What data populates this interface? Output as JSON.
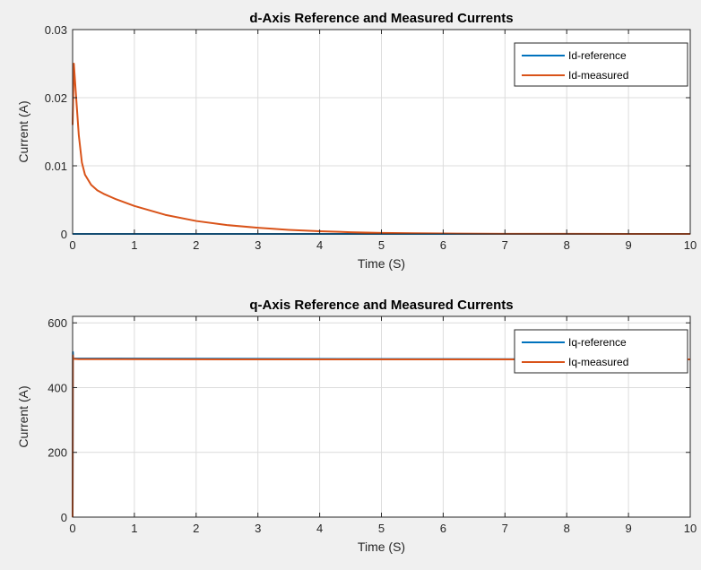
{
  "figure": {
    "background": "#f0f0f0",
    "axes_background": "#ffffff"
  },
  "chart_data": [
    {
      "type": "line",
      "title": "d-Axis Reference and Measured Currents",
      "xlabel": "Time (S)",
      "ylabel": "Current (A)",
      "xlim": [
        0,
        10
      ],
      "ylim": [
        0,
        0.03
      ],
      "xticks": [
        "0",
        "1",
        "2",
        "3",
        "4",
        "5",
        "6",
        "7",
        "8",
        "9",
        "10"
      ],
      "yticks": [
        "0",
        "0.01",
        "0.02",
        "0.03"
      ],
      "grid": true,
      "legend_position": "top-right",
      "series": [
        {
          "name": "Id-reference",
          "color": "#0072bd",
          "x": [
            0,
            10
          ],
          "y": [
            0,
            0
          ]
        },
        {
          "name": "Id-measured",
          "color": "#d95319",
          "x": [
            0,
            0.02,
            0.05,
            0.1,
            0.15,
            0.2,
            0.3,
            0.4,
            0.5,
            0.7,
            1.0,
            1.5,
            2.0,
            2.5,
            3.0,
            3.5,
            4.0,
            4.5,
            5.0,
            5.5,
            6.0,
            7.0,
            8.0,
            9.0,
            10.0
          ],
          "y": [
            0.016,
            0.025,
            0.021,
            0.0145,
            0.0105,
            0.0087,
            0.0072,
            0.0064,
            0.0059,
            0.0051,
            0.0041,
            0.0028,
            0.0019,
            0.0013,
            0.0009,
            0.0006,
            0.0004,
            0.00025,
            0.00015,
            0.0001,
            6e-05,
            2e-05,
            1e-05,
            5e-06,
            0.0
          ]
        }
      ]
    },
    {
      "type": "line",
      "title": "q-Axis Reference and Measured Currents",
      "xlabel": "Time (S)",
      "ylabel": "Current (A)",
      "xlim": [
        0,
        10
      ],
      "ylim": [
        0,
        620
      ],
      "xticks": [
        "0",
        "1",
        "2",
        "3",
        "4",
        "5",
        "6",
        "7",
        "8",
        "9",
        "10"
      ],
      "yticks": [
        "0",
        "200",
        "400",
        "600"
      ],
      "grid": true,
      "legend_position": "top-right",
      "series": [
        {
          "name": "Iq-reference",
          "color": "#0072bd",
          "x": [
            0,
            0.005,
            0.01,
            10
          ],
          "y": [
            0,
            510,
            490,
            487
          ]
        },
        {
          "name": "Iq-measured",
          "color": "#d95319",
          "x": [
            0,
            0.005,
            0.01,
            0.1,
            3,
            10
          ],
          "y": [
            0,
            500,
            489,
            488,
            487,
            487
          ]
        }
      ]
    }
  ]
}
